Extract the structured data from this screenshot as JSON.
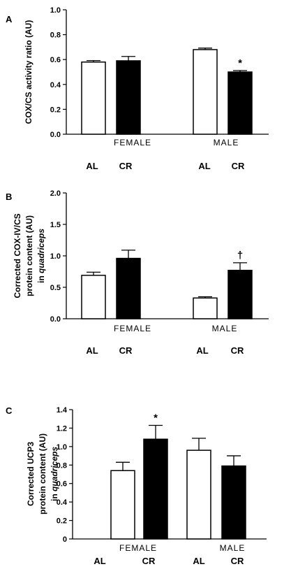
{
  "chart_data": [
    {
      "type": "bar",
      "panel_label": "A",
      "ylabel_lines": [
        "COX/CS activity ratio (AU)"
      ],
      "ylim": [
        0,
        1.0
      ],
      "yticks": [
        "0.0",
        "0.2",
        "0.4",
        "0.6",
        "0.8",
        "1.0"
      ],
      "groups": [
        "FEMALE",
        "MALE"
      ],
      "categories": [
        "AL",
        "CR",
        "AL",
        "CR"
      ],
      "series": [
        {
          "values": [
            0.58,
            0.59,
            0.68,
            0.5
          ],
          "errors": [
            0.012,
            0.035,
            0.012,
            0.012
          ]
        }
      ],
      "fills": [
        "#ffffff",
        "#000000",
        "#ffffff",
        "#000000"
      ],
      "annotations": [
        {
          "index": 3,
          "text": "*"
        }
      ],
      "grid": false
    },
    {
      "type": "bar",
      "panel_label": "B",
      "ylabel_lines": [
        "Corrected COX-IV/CS",
        "protein content (AU)",
        "in quadriceps"
      ],
      "ylim": [
        0,
        2.0
      ],
      "yticks": [
        "0.0",
        "0.5",
        "1.0",
        "1.5",
        "2.0"
      ],
      "groups": [
        "FEMALE",
        "MALE"
      ],
      "categories": [
        "AL",
        "CR",
        "AL",
        "CR"
      ],
      "series": [
        {
          "values": [
            0.69,
            0.96,
            0.33,
            0.77
          ],
          "errors": [
            0.05,
            0.13,
            0.02,
            0.12
          ]
        }
      ],
      "fills": [
        "#ffffff",
        "#000000",
        "#ffffff",
        "#000000"
      ],
      "annotations": [
        {
          "index": 3,
          "text": "†"
        }
      ],
      "grid": false
    },
    {
      "type": "bar",
      "panel_label": "C",
      "ylabel_lines": [
        "Corrected UCP3",
        "protein content (AU)",
        "in quadriceps"
      ],
      "ylim": [
        0,
        1.4
      ],
      "yticks": [
        "0",
        "0.2",
        "0.4",
        "0.6",
        "0.8",
        "1.0",
        "1.2",
        "1.4"
      ],
      "groups": [
        "FEMALE",
        "MALE"
      ],
      "categories": [
        "AL",
        "CR",
        "AL",
        "CR"
      ],
      "series": [
        {
          "values": [
            0.74,
            1.08,
            0.96,
            0.79
          ],
          "errors": [
            0.09,
            0.15,
            0.13,
            0.11
          ]
        }
      ],
      "fills": [
        "#ffffff",
        "#000000",
        "#ffffff",
        "#000000"
      ],
      "annotations": [
        {
          "index": 1,
          "text": "*"
        }
      ],
      "grid": false
    }
  ]
}
